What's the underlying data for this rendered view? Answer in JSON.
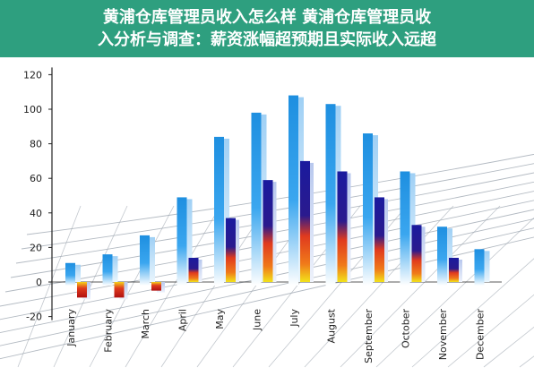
{
  "banner": {
    "line1": "黄浦仓库管理员收入怎么样 黄浦仓库管理员收",
    "line2": "入分析与调查：薪资涨幅超预期且实际收入远超"
  },
  "colors": {
    "banner_bg": "#2e9f7f",
    "series_a": "#1e8fe0",
    "series_b": "#1a1a9e",
    "series_b_accent": "#e03a1e",
    "series_b_highlight": "#f2e21a",
    "grid": "#9aa3ad"
  },
  "chart_data": {
    "type": "bar",
    "categories": [
      "January",
      "February",
      "March",
      "April",
      "May",
      "June",
      "July",
      "August",
      "September",
      "October",
      "November",
      "December"
    ],
    "series": [
      {
        "values": [
          11,
          16,
          27,
          49,
          84,
          98,
          108,
          103,
          86,
          64,
          32,
          19
        ]
      },
      {
        "values": [
          -9,
          -9,
          -5,
          14,
          37,
          59,
          70,
          64,
          49,
          33,
          14,
          null
        ]
      }
    ],
    "y_ticks": [
      "-20",
      "0",
      "20",
      "40",
      "60",
      "80",
      "100",
      "120"
    ],
    "ylim": [
      -20,
      120
    ],
    "grid": "perspective floor",
    "legend": "none"
  }
}
